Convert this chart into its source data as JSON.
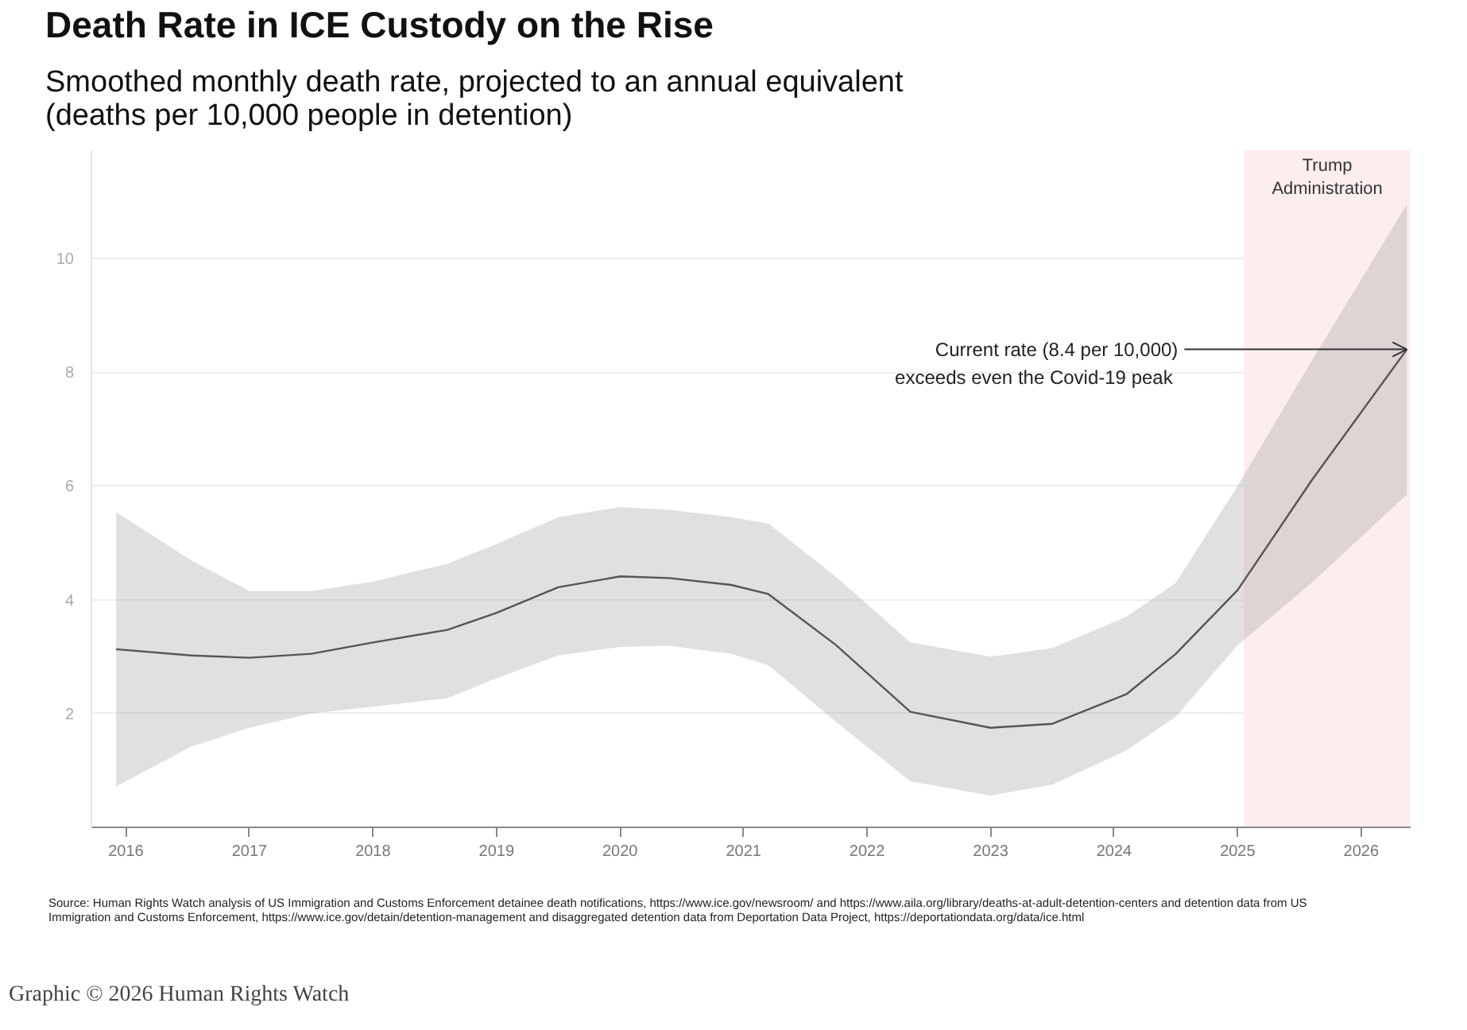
{
  "chart_data": {
    "type": "line",
    "title": "Death Rate in ICE Custody on the Rise",
    "subtitle": "Smoothed monthly death rate, projected to an annual equivalent\n(deaths per 10,000 people in detention)",
    "x": [
      2015.92,
      2016.53,
      2017.0,
      2017.5,
      2018.0,
      2018.6,
      2019.0,
      2019.5,
      2020.0,
      2020.4,
      2020.9,
      2021.2,
      2021.75,
      2022.35,
      2023.0,
      2023.5,
      2024.1,
      2024.5,
      2025.0,
      2025.6,
      2026.37
    ],
    "series": [
      {
        "color": "#555555",
        "values": [
          3.13,
          3.02,
          2.98,
          3.05,
          3.25,
          3.47,
          3.77,
          4.22,
          4.41,
          4.38,
          4.26,
          4.1,
          3.2,
          2.03,
          1.75,
          1.82,
          2.34,
          3.05,
          4.17,
          6.1,
          8.4
        ],
        "lower": [
          0.72,
          1.42,
          1.75,
          2.0,
          2.12,
          2.27,
          2.62,
          3.02,
          3.17,
          3.19,
          3.05,
          2.85,
          1.85,
          0.81,
          0.56,
          0.75,
          1.35,
          1.95,
          3.2,
          4.3,
          5.85
        ],
        "upper": [
          5.54,
          4.69,
          4.15,
          4.15,
          4.32,
          4.63,
          4.98,
          5.45,
          5.63,
          5.58,
          5.45,
          5.34,
          4.4,
          3.25,
          3.0,
          3.15,
          3.7,
          4.3,
          6.0,
          8.2,
          10.95
        ]
      }
    ],
    "xlim": [
      2015.72,
      2026.4
    ],
    "xticks": [
      2016,
      2017,
      2018,
      2019,
      2020,
      2021,
      2022,
      2023,
      2024,
      2025,
      2026
    ],
    "ylim": [
      0,
      11.9
    ],
    "yticks": [
      2,
      4,
      6,
      8,
      10
    ],
    "grid": "y",
    "marker": "none",
    "line_style": "solid",
    "bands": [
      {
        "axis": "x",
        "from": 2025.05,
        "to": 2026.4,
        "label": "Trump\nAdministration",
        "color": "#fdeeee"
      }
    ],
    "annotations": [
      {
        "text": "Current rate (8.4 per 10,000)\nexceeds even  the Covid-19 peak",
        "x": 2026.37,
        "y": 8.4
      },
      "Source: Human Rights Watch analysis of US Immigration and Customs Enforcement detainee death notifications, https://www.ice.gov/newsroom/ and https://www.aila.org/library/deaths-at-adult-detention-centers and detention data from US Immigration and Customs Enforcement, https://www.ice.gov/detain/detention-management and disaggregated detention data from Deportation Data Project, https://deportationdata.org/data/ice.html",
      "Graphic © 2026 Human Rights Watch"
    ]
  }
}
